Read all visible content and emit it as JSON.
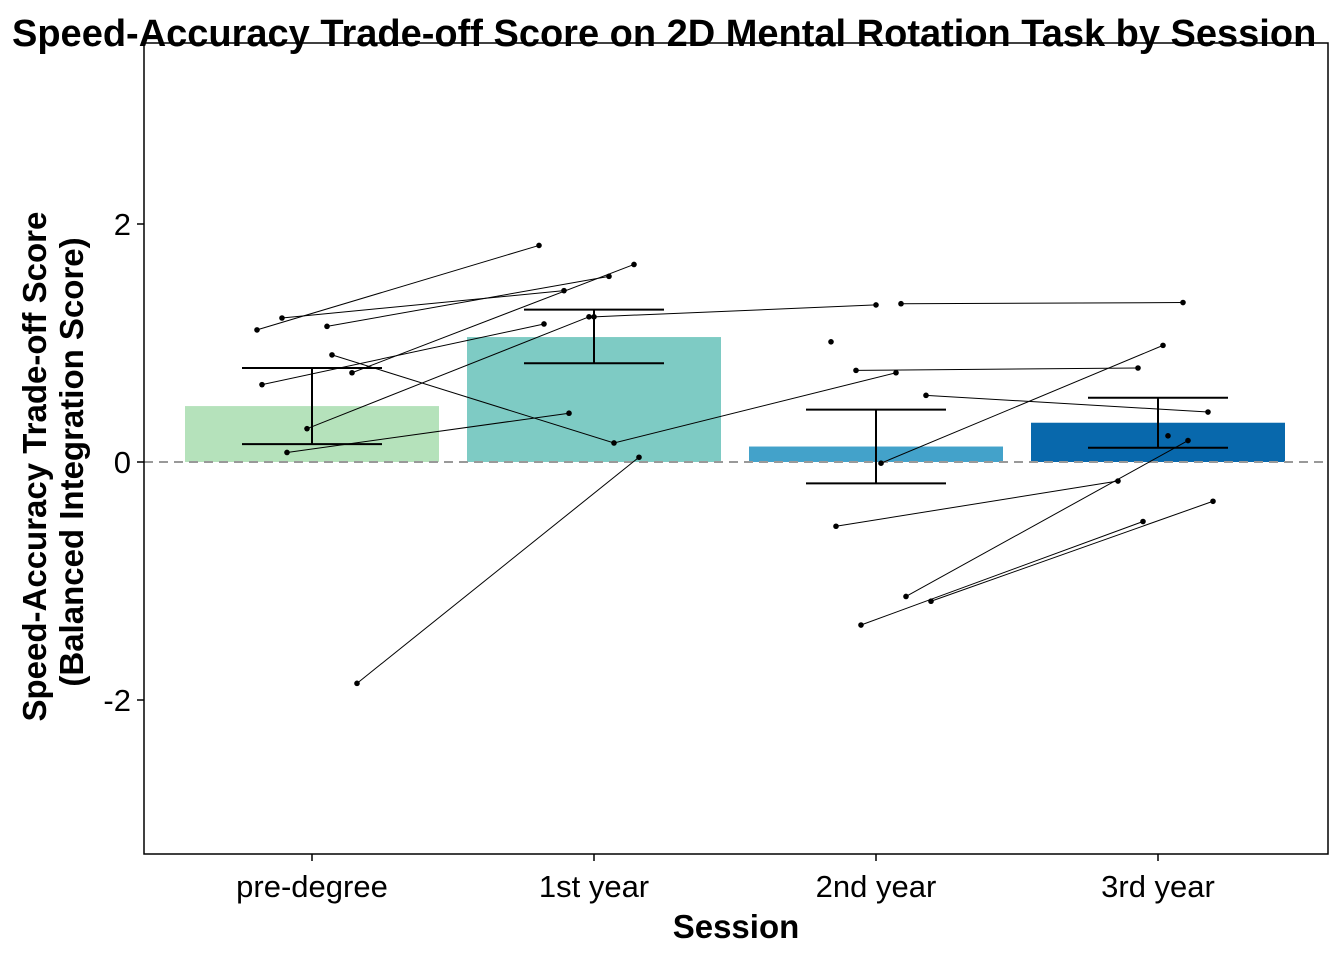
{
  "chart_data": {
    "type": "bar",
    "title": "Speed-Accuracy Trade-off Score on 2D Mental Rotation Task by Session",
    "xlabel": "Session",
    "ylabel": [
      "Speed-Accuracy Trade-off Score",
      "(Balanced Integration Score)"
    ],
    "ylim": [
      -3.3,
      3.3
    ],
    "yticks": [
      -2,
      0,
      2
    ],
    "ytick_labels": [
      "-2",
      "0",
      "2"
    ],
    "grid": false,
    "legend": "none",
    "reference_line": {
      "y": 0,
      "style": "dashed",
      "color": "#999999"
    },
    "categories": [
      "pre-degree",
      "1st year",
      "2nd year",
      "3rd year"
    ],
    "values": [
      0.47,
      1.05,
      0.13,
      0.33
    ],
    "error_bars": [
      {
        "low": 0.15,
        "high": 0.79
      },
      {
        "low": 0.83,
        "high": 1.28
      },
      {
        "low": -0.18,
        "high": 0.44
      },
      {
        "low": 0.12,
        "high": 0.54
      }
    ],
    "bar_colors": [
      "#b5e2bb",
      "#7ecbc4",
      "#43a2ca",
      "#0868ac"
    ],
    "participants": [
      {
        "points": [
          {
            "x": "pre-degree",
            "y": 1.11
          },
          {
            "x": "1st year",
            "y": 1.82
          }
        ]
      },
      {
        "points": [
          {
            "x": "pre-degree",
            "y": 1.14
          },
          {
            "x": "1st year",
            "y": 1.56
          }
        ]
      },
      {
        "points": [
          {
            "x": "pre-degree",
            "y": 1.21
          },
          {
            "x": "1st year",
            "y": 1.44
          }
        ]
      },
      {
        "points": [
          {
            "x": "pre-degree",
            "y": 0.75
          },
          {
            "x": "1st year",
            "y": 1.66
          }
        ]
      },
      {
        "points": [
          {
            "x": "pre-degree",
            "y": 0.28
          },
          {
            "x": "1st year",
            "y": 1.22
          }
        ]
      },
      {
        "points": [
          {
            "x": "pre-degree",
            "y": 0.65
          },
          {
            "x": "1st year",
            "y": 1.16
          }
        ]
      },
      {
        "points": [
          {
            "x": "pre-degree",
            "y": 0.9
          },
          {
            "x": "1st year",
            "y": 0.16
          },
          {
            "x": "2nd year",
            "y": 0.75
          }
        ]
      },
      {
        "points": [
          {
            "x": "pre-degree",
            "y": 0.08
          },
          {
            "x": "1st year",
            "y": 0.41
          }
        ]
      },
      {
        "points": [
          {
            "x": "pre-degree",
            "y": -1.86
          },
          {
            "x": "1st year",
            "y": 0.04
          }
        ]
      },
      {
        "points": [
          {
            "x": "1st year",
            "y": 1.22
          },
          {
            "x": "2nd year",
            "y": 1.32
          }
        ]
      },
      {
        "points": [
          {
            "x": "2nd year",
            "y": 1.01
          }
        ]
      },
      {
        "points": [
          {
            "x": "2nd year",
            "y": 1.33
          },
          {
            "x": "3rd year",
            "y": 1.34
          }
        ]
      },
      {
        "points": [
          {
            "x": "2nd year",
            "y": 0.77
          },
          {
            "x": "3rd year",
            "y": 0.79
          }
        ]
      },
      {
        "points": [
          {
            "x": "2nd year",
            "y": 0.56
          },
          {
            "x": "3rd year",
            "y": 0.42
          }
        ]
      },
      {
        "points": [
          {
            "x": "2nd year",
            "y": -0.01
          },
          {
            "x": "3rd year",
            "y": 0.98
          }
        ]
      },
      {
        "points": [
          {
            "x": "2nd year",
            "y": -0.54
          },
          {
            "x": "3rd year",
            "y": -0.16
          }
        ]
      },
      {
        "points": [
          {
            "x": "2nd year",
            "y": -1.13
          },
          {
            "x": "3rd year",
            "y": 0.18
          }
        ]
      },
      {
        "points": [
          {
            "x": "2nd year",
            "y": -1.37
          },
          {
            "x": "3rd year",
            "y": -0.5
          }
        ]
      },
      {
        "points": [
          {
            "x": "2nd year",
            "y": -1.17
          },
          {
            "x": "3rd year",
            "y": -0.33
          }
        ]
      },
      {
        "points": [
          {
            "x": "3rd year",
            "y": 0.22
          }
        ]
      }
    ]
  }
}
